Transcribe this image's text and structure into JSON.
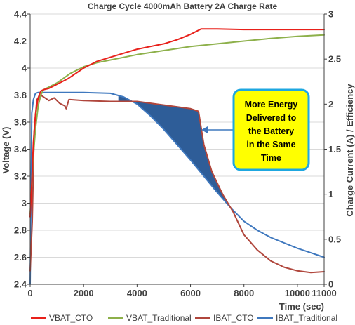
{
  "chart_data": {
    "type": "line",
    "title": "Charge Cycle 4000mAh Battery 2A Charge Rate",
    "xlabel": "Time (sec)",
    "ylabel_left": "Voltage (V)",
    "ylabel_right": "Charge Current (A) / Efficiency",
    "xlim": [
      0,
      11000
    ],
    "ylim_left": [
      2.4,
      4.4
    ],
    "ylim_right": [
      0,
      3
    ],
    "x_ticks": [
      0,
      2000,
      4000,
      6000,
      8000,
      10000,
      11000
    ],
    "x_tick_labels": [
      "0",
      "2000",
      "4000",
      "6000",
      "8000",
      "10000",
      "11000"
    ],
    "y_left_ticks": [
      2.4,
      2.6,
      2.8,
      3,
      3.2,
      3.4,
      3.6,
      3.8,
      4,
      4.2,
      4.4
    ],
    "y_left_tick_labels": [
      "2.4",
      "2.6",
      "2.8",
      "3",
      "3.2",
      "3.4",
      "3.6",
      "3.8",
      "4",
      "4.2",
      "4.4"
    ],
    "y_right_ticks": [
      0,
      0.5,
      1,
      1.5,
      2,
      2.5,
      3
    ],
    "y_right_tick_labels": [
      "0",
      "0.5",
      "1",
      "1.5",
      "2",
      "2.5",
      "3"
    ],
    "grid": "horizontal",
    "legend_position": "bottom",
    "colors": {
      "VBAT_CTO": "#e8201a",
      "VBAT_Traditional": "#8db04a",
      "IBAT_CTO": "#b0463c",
      "IBAT_Traditional": "#3f78be",
      "fill": "#2e5d98"
    },
    "series": [
      {
        "name": "VBAT_CTO",
        "axis": "left",
        "x": [
          0,
          60,
          120,
          200,
          300,
          400,
          500,
          700,
          1000,
          1400,
          2000,
          2500,
          3000,
          3500,
          4000,
          4500,
          5000,
          5500,
          6000,
          6300,
          6400,
          7000,
          8000,
          9000,
          10000,
          11000
        ],
        "y": [
          2.9,
          3.15,
          3.45,
          3.66,
          3.78,
          3.83,
          3.84,
          3.85,
          3.88,
          3.92,
          4.0,
          4.05,
          4.08,
          4.11,
          4.14,
          4.16,
          4.18,
          4.21,
          4.25,
          4.28,
          4.29,
          4.29,
          4.285,
          4.285,
          4.285,
          4.285
        ]
      },
      {
        "name": "VBAT_Traditional",
        "axis": "left",
        "x": [
          0,
          100,
          200,
          300,
          400,
          500,
          700,
          1000,
          1500,
          2000,
          2500,
          3000,
          4000,
          5000,
          6000,
          7000,
          8000,
          9000,
          10000,
          11000
        ],
        "y": [
          2.92,
          3.3,
          3.55,
          3.72,
          3.8,
          3.84,
          3.86,
          3.89,
          3.96,
          4.01,
          4.04,
          4.06,
          4.1,
          4.13,
          4.16,
          4.18,
          4.2,
          4.22,
          4.235,
          4.245
        ]
      },
      {
        "name": "IBAT_CTO",
        "axis": "right",
        "x": [
          0,
          80,
          150,
          250,
          400,
          500,
          700,
          900,
          1100,
          1300,
          1350,
          1450,
          1500,
          2000,
          3000,
          4000,
          5000,
          6000,
          6300,
          6500,
          6800,
          7200,
          7600,
          8000,
          8500,
          9000,
          9500,
          10000,
          10500,
          11000
        ],
        "y": [
          0.15,
          0.7,
          1.7,
          2.05,
          2.1,
          2.08,
          2.04,
          2.07,
          2.01,
          1.98,
          1.95,
          2.05,
          2.05,
          2.04,
          2.03,
          2.03,
          1.99,
          1.95,
          1.92,
          1.55,
          1.25,
          1.0,
          0.8,
          0.55,
          0.38,
          0.26,
          0.19,
          0.15,
          0.13,
          0.14
        ]
      },
      {
        "name": "IBAT_Traditional",
        "axis": "right",
        "x": [
          0,
          60,
          120,
          200,
          300,
          500,
          1000,
          2000,
          3000,
          3500,
          4000,
          4500,
          5000,
          5500,
          6000,
          6500,
          7000,
          7500,
          8000,
          8500,
          9000,
          9500,
          10000,
          10500,
          11000
        ],
        "y": [
          0.0,
          1.9,
          2.05,
          2.12,
          2.13,
          2.13,
          2.13,
          2.13,
          2.12,
          2.08,
          2.0,
          1.87,
          1.72,
          1.55,
          1.38,
          1.2,
          1.02,
          0.85,
          0.7,
          0.6,
          0.52,
          0.46,
          0.4,
          0.35,
          0.3
        ]
      }
    ],
    "annotation": "More Energy Delivered to the Battery in the Same Time",
    "annotation_lines": [
      "More Energy",
      "Delivered to",
      "the Battery",
      "in the Same",
      "Time"
    ]
  }
}
